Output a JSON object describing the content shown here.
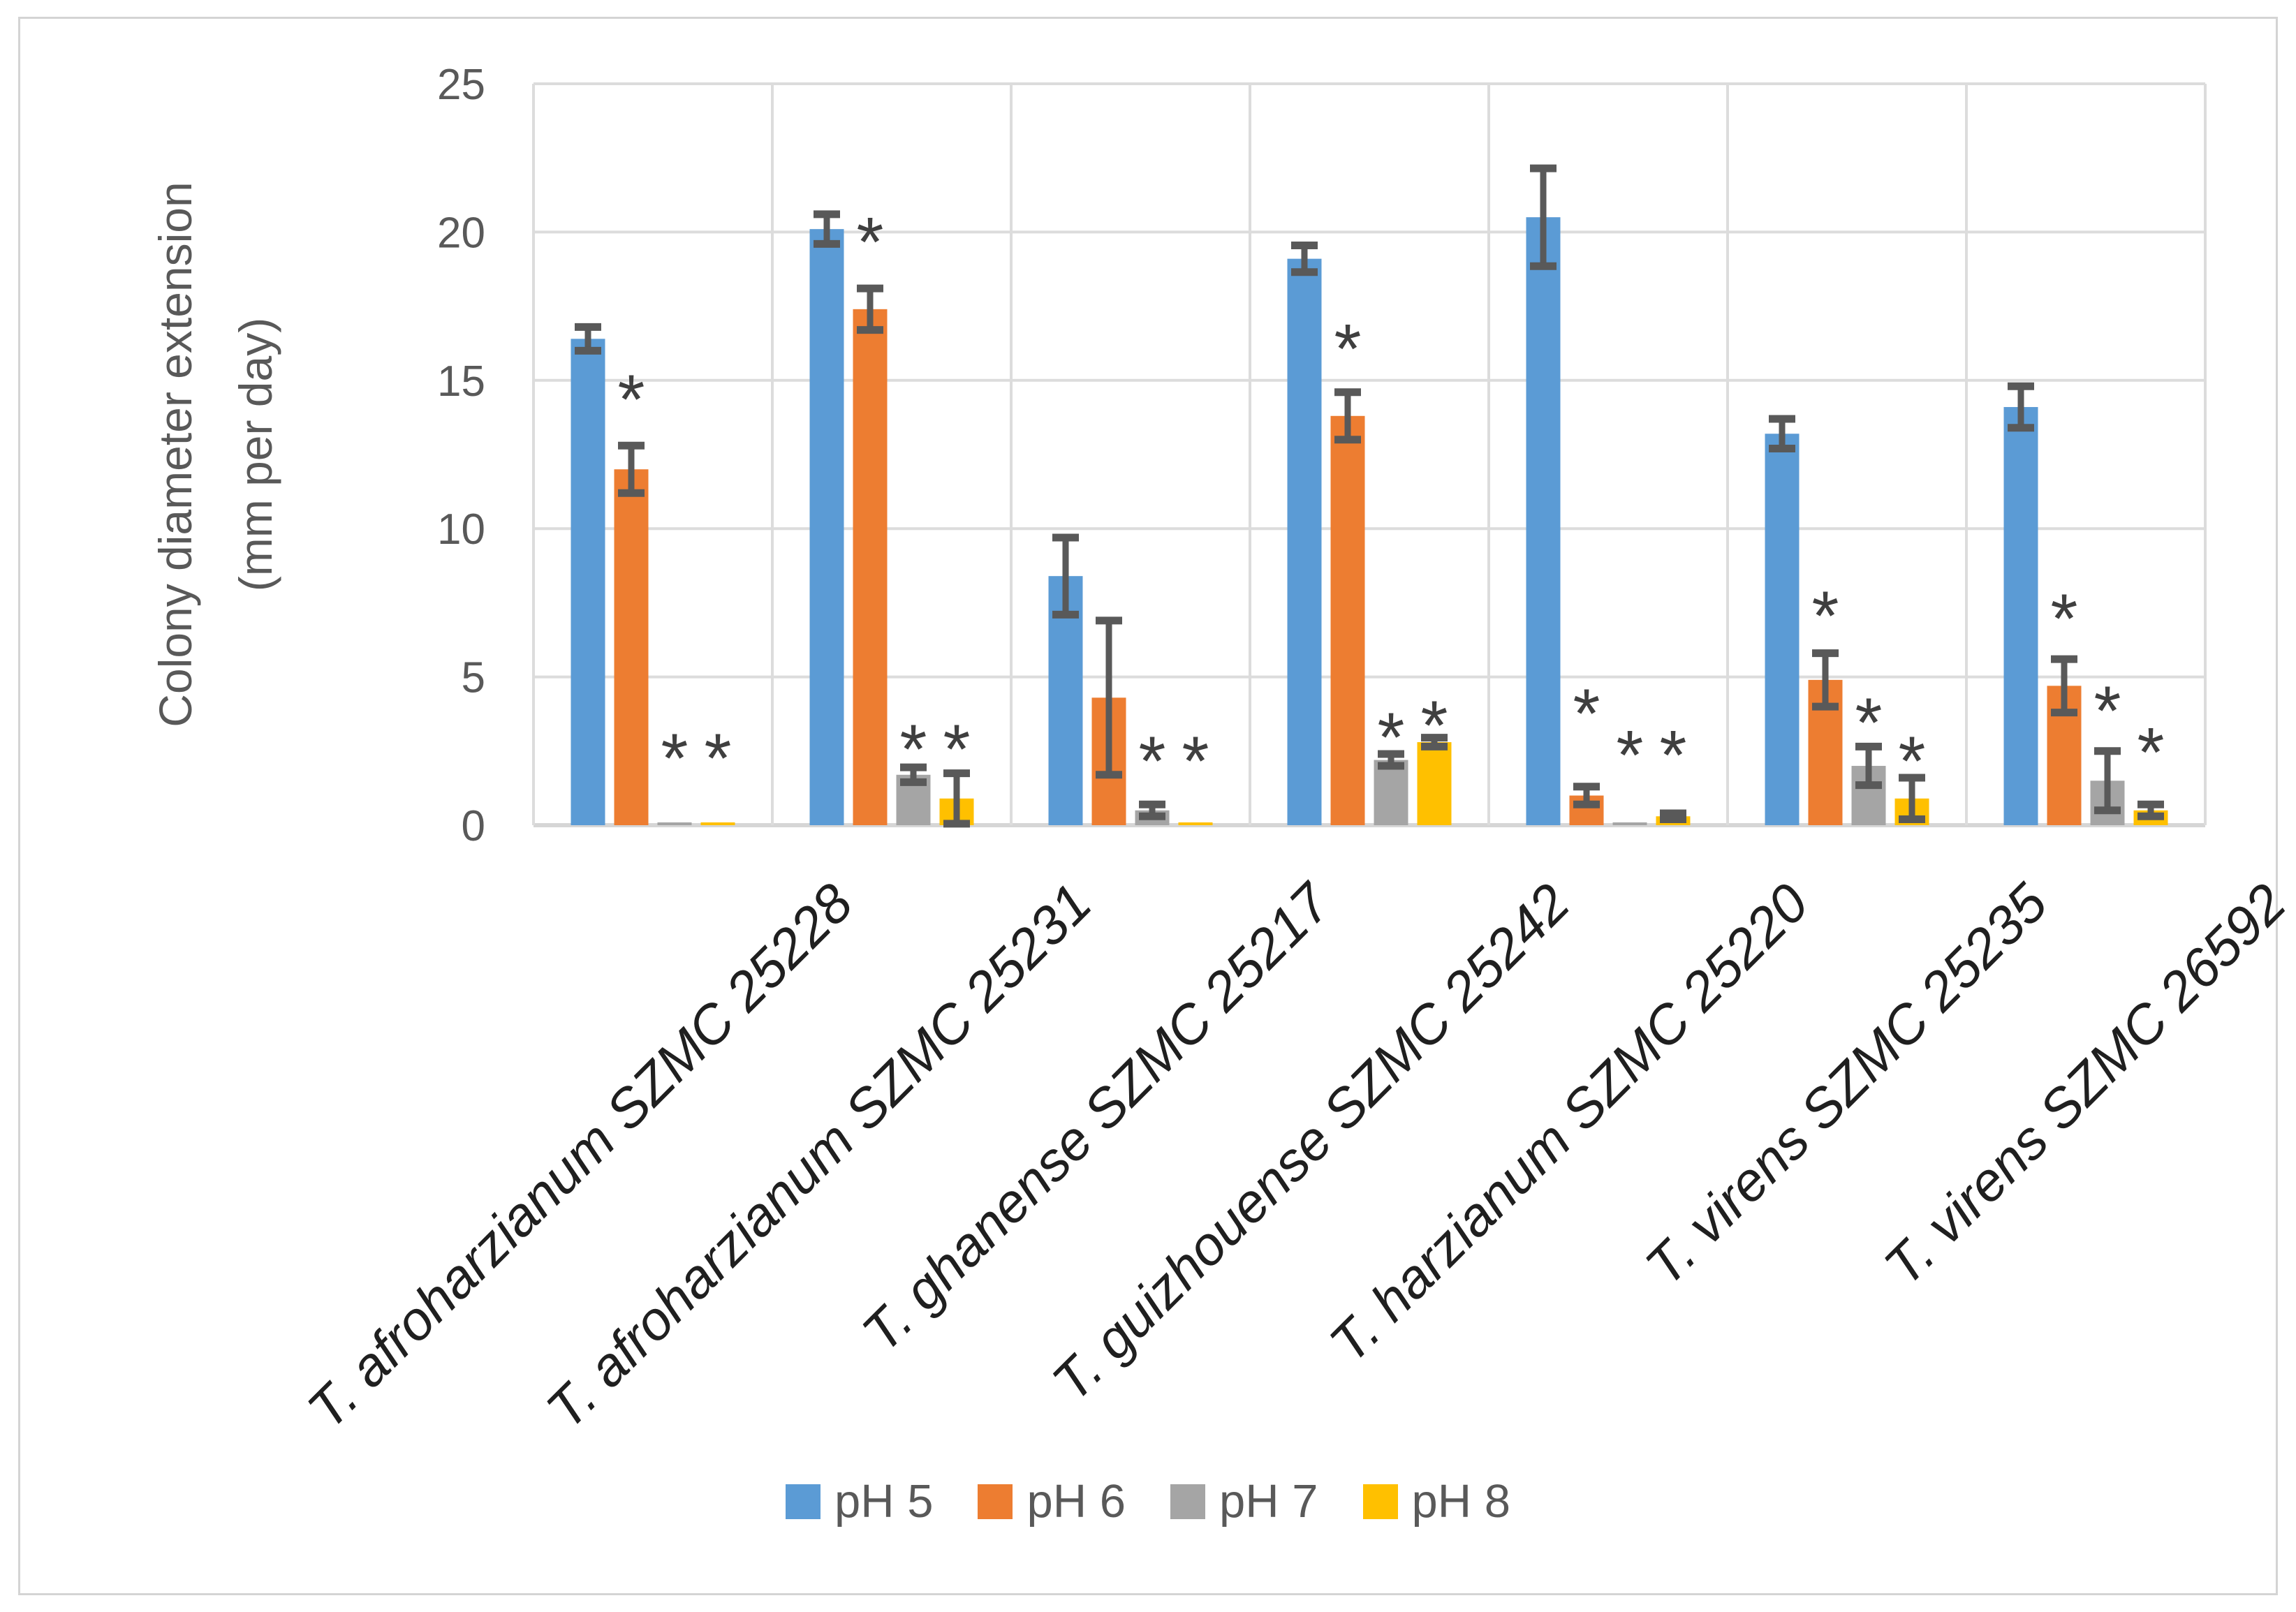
{
  "chart_data": {
    "type": "bar",
    "title": "",
    "ylabel_line1": "Colony diameter extension",
    "ylabel_line2": "(mm per day)",
    "xlabel": "",
    "ylim": [
      0,
      25
    ],
    "ystep": 5,
    "grid": true,
    "legend_position": "bottom",
    "significance_marker": "*",
    "categories": [
      "T. afroharzianum SZMC 25228",
      "T. afroharzianum SZMC 25231",
      "T. ghanense SZMC 25217",
      "T. guizhouense SZMC 25242",
      "T. harzianum SZMC 25220",
      "T. virens SZMC 25235",
      "T. virens SZMC 26592"
    ],
    "series": [
      {
        "name": "pH 5",
        "color": "#5B9BD5",
        "values": [
          16.4,
          20.1,
          8.4,
          19.1,
          20.5,
          13.2,
          14.1
        ],
        "errors": [
          0.4,
          0.5,
          1.3,
          0.45,
          1.65,
          0.5,
          0.7
        ],
        "sig_y": [
          null,
          null,
          null,
          null,
          null,
          null,
          null
        ]
      },
      {
        "name": "pH 6",
        "color": "#ED7D31",
        "values": [
          12.0,
          17.4,
          4.3,
          13.8,
          1.0,
          4.9,
          4.7
        ],
        "errors": [
          0.8,
          0.7,
          2.6,
          0.8,
          0.3,
          0.9,
          0.9
        ],
        "sig_y": [
          14.4,
          19.7,
          null,
          16.1,
          3.8,
          7.1,
          7.0
        ]
      },
      {
        "name": "pH 7",
        "color": "#A5A5A5",
        "values": [
          0.05,
          1.7,
          0.5,
          2.2,
          0.05,
          2.0,
          1.5
        ],
        "errors": [
          0,
          0.25,
          0.2,
          0.2,
          0,
          0.65,
          1.0
        ],
        "sig_y": [
          2.3,
          2.6,
          2.2,
          3.0,
          2.4,
          3.5,
          3.9
        ]
      },
      {
        "name": "pH 8",
        "color": "#FFC000",
        "values": [
          0.05,
          0.9,
          0.05,
          2.8,
          0.3,
          0.9,
          0.5
        ],
        "errors": [
          0,
          0.85,
          0,
          0.15,
          0.1,
          0.7,
          0.2
        ],
        "sig_y": [
          2.3,
          2.6,
          2.2,
          3.4,
          2.4,
          2.2,
          2.5
        ]
      }
    ],
    "axis_text_color": "#595959",
    "gridline_color": "#DCDCDC",
    "error_bar_color": "#595959",
    "asterisk_color": "#3F3F3F"
  }
}
